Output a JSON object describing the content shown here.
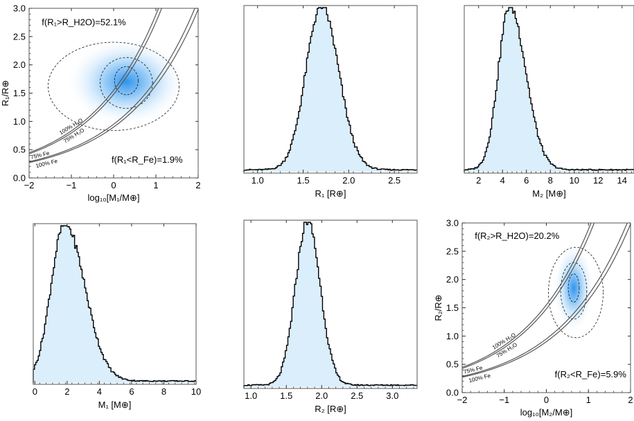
{
  "colors": {
    "hist_fill": "#dbeefb",
    "hist_line": "#000000",
    "density_core": "#2f94ee",
    "density_mid": "#8cc6f7",
    "frame": "#555555",
    "curve": "#555555"
  },
  "chart_data": [
    {
      "id": "p1",
      "type": "scatter",
      "title": "",
      "xlabel": "log₁₀[M₁/M⊕]",
      "ylabel": "R₁/R⊕",
      "xlim": [
        -2,
        2
      ],
      "ylim": [
        0,
        3
      ],
      "xticks": [
        -2,
        -1,
        0,
        1,
        2
      ],
      "xtick_labels": [
        "−2",
        "−1",
        "0",
        "1",
        "2"
      ],
      "yticks": [
        0,
        0.5,
        1,
        1.5,
        2,
        2.5,
        3
      ],
      "ytick_labels": [
        "0.0",
        "0.5",
        "1.0",
        "1.5",
        "2.0",
        "2.5",
        "3.0"
      ],
      "density_center": [
        0.3,
        1.7
      ],
      "density_sigma": [
        0.6,
        0.33
      ],
      "contours": [
        {
          "cx": 0.3,
          "cy": 1.72,
          "rx": 0.28,
          "ry": 0.25
        },
        {
          "cx": 0.3,
          "cy": 1.68,
          "rx": 0.62,
          "ry": 0.45
        },
        {
          "cx": 0.0,
          "cy": 1.62,
          "rx": 1.55,
          "ry": 0.78
        }
      ],
      "annotations": [
        {
          "text": "f(R₁>R_H2O)=52.1%",
          "x": -1.7,
          "y": 2.7
        },
        {
          "text": "f(R₁<R_Fe)=1.9%",
          "x": -0.05,
          "y": 0.27
        }
      ],
      "curve_labels": {
        "h2o100": "100% H₂O",
        "h2o75": "75% H₂O",
        "fe75": "75% Fe",
        "fe100": "100% Fe"
      }
    },
    {
      "id": "p2",
      "type": "bar",
      "title": "",
      "xlabel": "R₁ [R⊕]",
      "ylabel": "",
      "xlim": [
        0.85,
        2.75
      ],
      "xticks": [
        1.0,
        1.5,
        2.0,
        2.5
      ],
      "xtick_labels": [
        "1.0",
        "1.5",
        "2.0",
        "2.5"
      ],
      "peak": 1.7,
      "sigma_left": 0.17,
      "sigma_right": 0.19
    },
    {
      "id": "p3",
      "type": "bar",
      "title": "",
      "xlabel": "M₂ [M⊕]",
      "ylabel": "",
      "xlim": [
        0.8,
        15
      ],
      "xticks": [
        2,
        4,
        6,
        8,
        10,
        12,
        14
      ],
      "xtick_labels": [
        "2",
        "4",
        "6",
        "8",
        "10",
        "12",
        "14"
      ],
      "peak": 4.6,
      "sigma_left": 0.95,
      "sigma_right": 1.35
    },
    {
      "id": "p4",
      "type": "bar",
      "title": "",
      "xlabel": "M₁ [M⊕]",
      "ylabel": "",
      "xlim": [
        -0.1,
        10
      ],
      "xticks": [
        0,
        2,
        4,
        6,
        8,
        10
      ],
      "xtick_labels": [
        "0",
        "2",
        "4",
        "6",
        "8",
        "10"
      ],
      "peak": 1.85,
      "sigma_left": 0.85,
      "sigma_right": 1.25
    },
    {
      "id": "p5",
      "type": "bar",
      "title": "",
      "xlabel": "R₂ [R⊕]",
      "ylabel": "",
      "xlim": [
        0.9,
        3.35
      ],
      "xticks": [
        1.0,
        1.5,
        2.0,
        2.5,
        3.0
      ],
      "xtick_labels": [
        "1.0",
        "1.5",
        "2.0",
        "2.5",
        "3.0"
      ],
      "peak": 1.8,
      "sigma_left": 0.17,
      "sigma_right": 0.18
    },
    {
      "id": "p6",
      "type": "scatter",
      "title": "",
      "xlabel": "log₁₀[M₂/M⊕]",
      "ylabel": "R₂/R⊕",
      "xlim": [
        -2,
        2
      ],
      "ylim": [
        0,
        3
      ],
      "xticks": [
        -2,
        -1,
        0,
        1,
        2
      ],
      "xtick_labels": [
        "−2",
        "−1",
        "0",
        "1",
        "2"
      ],
      "yticks": [
        0,
        0.5,
        1,
        1.5,
        2,
        2.5,
        3
      ],
      "ytick_labels": [
        "0.0",
        "0.5",
        "1.0",
        "1.5",
        "2.0",
        "2.5",
        "3.0"
      ],
      "density_center": [
        0.65,
        1.85
      ],
      "density_sigma": [
        0.2,
        0.33
      ],
      "contours": [
        {
          "cx": 0.65,
          "cy": 1.85,
          "rx": 0.13,
          "ry": 0.25
        },
        {
          "cx": 0.65,
          "cy": 1.8,
          "rx": 0.31,
          "ry": 0.5
        },
        {
          "cx": 0.7,
          "cy": 1.77,
          "rx": 0.65,
          "ry": 0.8
        }
      ],
      "annotations": [
        {
          "text": "f(R₂>R_H2O)=20.2%",
          "x": -1.7,
          "y": 2.72
        },
        {
          "text": "f(R₂<R_Fe)=5.9%",
          "x": 0.2,
          "y": 0.27
        }
      ],
      "curve_labels": {
        "h2o100": "100% H₂O",
        "h2o75": "75% H₂O",
        "fe75": "75% Fe",
        "fe100": "100% Fe"
      }
    }
  ]
}
